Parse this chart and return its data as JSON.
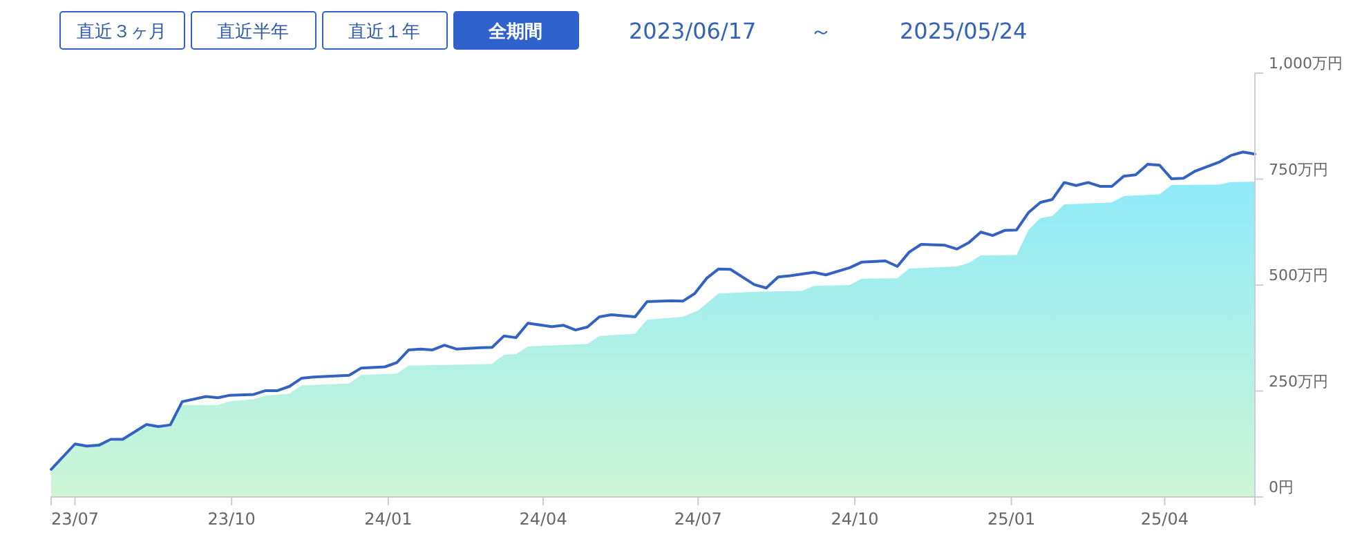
{
  "chart_data": {
    "type": "line",
    "annotations": [
      "直近３ヶ月",
      "直近半年",
      "直近１年",
      "全期間",
      "2023/06/17",
      "～",
      "2025/05/24"
    ],
    "xlim": [
      "2023-06-17",
      "2025-05-24"
    ],
    "xticks": [
      {
        "value": "2023-07-01",
        "label": "23/07"
      },
      {
        "value": "2023-10-01",
        "label": "23/10"
      },
      {
        "value": "2024-01-01",
        "label": "24/01"
      },
      {
        "value": "2024-04-01",
        "label": "24/04"
      },
      {
        "value": "2024-07-01",
        "label": "24/07"
      },
      {
        "value": "2024-10-01",
        "label": "24/10"
      },
      {
        "value": "2025-01-01",
        "label": "25/01"
      },
      {
        "value": "2025-04-01",
        "label": "25/04"
      }
    ],
    "ylim": [
      0,
      1000
    ],
    "yticks": [
      {
        "value": 0,
        "label": "0円"
      },
      {
        "value": 250,
        "label": "250万円"
      },
      {
        "value": 500,
        "label": "500万円"
      },
      {
        "value": 750,
        "label": "750万円"
      },
      {
        "value": 1000,
        "label": "1,000万円"
      }
    ],
    "grid": false,
    "marker": "none",
    "series": [
      {
        "type": "area",
        "color": "#8feaf8",
        "x": [
          "2023-06-17",
          "2023-07-01",
          "2023-07-29",
          "2023-08-12",
          "2023-08-26",
          "2023-09-02",
          "2023-09-23",
          "2023-09-30",
          "2023-10-14",
          "2023-10-21",
          "2023-11-04",
          "2023-11-11",
          "2023-12-09",
          "2023-12-16",
          "2024-01-06",
          "2024-01-13",
          "2024-03-02",
          "2024-03-09",
          "2024-03-16",
          "2024-03-23",
          "2024-04-27",
          "2024-05-04",
          "2024-05-25",
          "2024-06-01",
          "2024-06-22",
          "2024-07-01",
          "2024-07-13",
          "2024-08-03",
          "2024-08-31",
          "2024-09-07",
          "2024-09-28",
          "2024-10-05",
          "2024-10-26",
          "2024-11-02",
          "2024-11-30",
          "2024-12-07",
          "2024-12-14",
          "2025-01-04",
          "2025-01-11",
          "2025-01-18",
          "2025-01-25",
          "2025-02-01",
          "2025-03-01",
          "2025-03-08",
          "2025-03-29",
          "2025-04-05",
          "2025-05-03",
          "2025-05-10",
          "2025-05-24"
        ],
        "values": [
          65,
          120,
          134,
          166,
          165,
          217,
          217,
          226,
          231,
          239,
          244,
          263,
          268,
          288,
          291,
          310,
          314,
          336,
          337,
          355,
          361,
          380,
          385,
          418,
          425,
          440,
          480,
          484,
          486,
          498,
          500,
          515,
          516,
          539,
          544,
          552,
          570,
          571,
          630,
          658,
          663,
          690,
          695,
          710,
          714,
          736,
          737,
          743,
          744
        ]
      },
      {
        "color": "#3462c0",
        "x": [
          "2023-06-17",
          "2023-07-01",
          "2023-07-08",
          "2023-07-15",
          "2023-07-22",
          "2023-07-29",
          "2023-08-12",
          "2023-08-19",
          "2023-08-26",
          "2023-09-02",
          "2023-09-16",
          "2023-09-23",
          "2023-09-30",
          "2023-10-14",
          "2023-10-21",
          "2023-10-28",
          "2023-11-04",
          "2023-11-11",
          "2023-11-18",
          "2023-12-09",
          "2023-12-16",
          "2023-12-30",
          "2024-01-06",
          "2024-01-13",
          "2024-01-20",
          "2024-01-27",
          "2024-02-03",
          "2024-02-10",
          "2024-02-24",
          "2024-03-02",
          "2024-03-09",
          "2024-03-16",
          "2024-03-23",
          "2024-04-06",
          "2024-04-13",
          "2024-04-20",
          "2024-04-27",
          "2024-05-04",
          "2024-05-11",
          "2024-05-25",
          "2024-06-01",
          "2024-06-15",
          "2024-06-22",
          "2024-06-29",
          "2024-07-06",
          "2024-07-13",
          "2024-07-20",
          "2024-08-03",
          "2024-08-10",
          "2024-08-17",
          "2024-08-24",
          "2024-09-07",
          "2024-09-14",
          "2024-09-28",
          "2024-10-05",
          "2024-10-19",
          "2024-10-26",
          "2024-11-02",
          "2024-11-09",
          "2024-11-23",
          "2024-11-30",
          "2024-12-07",
          "2024-12-14",
          "2024-12-21",
          "2024-12-28",
          "2025-01-04",
          "2025-01-11",
          "2025-01-18",
          "2025-01-25",
          "2025-02-01",
          "2025-02-08",
          "2025-02-15",
          "2025-02-22",
          "2025-03-01",
          "2025-03-08",
          "2025-03-15",
          "2025-03-22",
          "2025-03-29",
          "2025-04-05",
          "2025-04-12",
          "2025-04-19",
          "2025-05-03",
          "2025-05-10",
          "2025-05-17",
          "2025-05-24"
        ],
        "values": [
          65,
          125,
          120,
          122,
          136,
          136,
          171,
          166,
          170,
          225,
          237,
          234,
          240,
          242,
          251,
          251,
          261,
          280,
          283,
          287,
          304,
          307,
          317,
          347,
          349,
          347,
          358,
          349,
          352,
          353,
          380,
          376,
          410,
          402,
          405,
          394,
          401,
          425,
          430,
          425,
          461,
          463,
          462,
          480,
          516,
          538,
          537,
          501,
          493,
          519,
          522,
          530,
          524,
          541,
          554,
          557,
          544,
          578,
          596,
          594,
          585,
          600,
          625,
          617,
          629,
          630,
          671,
          695,
          702,
          742,
          735,
          742,
          733,
          733,
          757,
          760,
          785,
          783,
          751,
          752,
          769,
          790,
          806,
          814,
          809
        ]
      }
    ]
  }
}
